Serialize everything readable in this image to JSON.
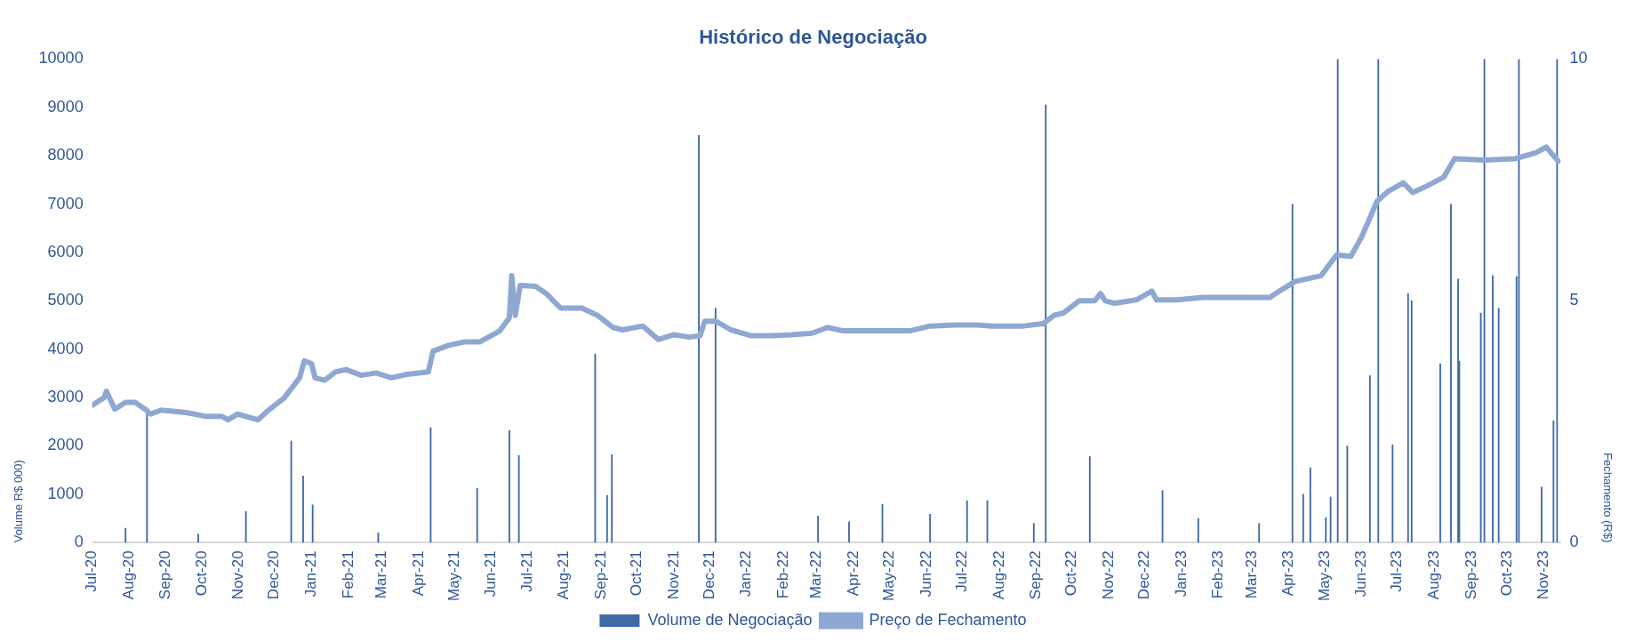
{
  "chart_data": {
    "type": "bar",
    "title": "Histórico de Negociação",
    "ylabel": "Volume R$ 000)",
    "y2label": "Fechamento (R$)",
    "xlim": [
      "2020-07-01",
      "2023-11-15"
    ],
    "xticks": [
      {
        "value": "2020-07-01",
        "label": "Jul-20"
      },
      {
        "value": "2020-08-01",
        "label": "Aug-20"
      },
      {
        "value": "2020-09-01",
        "label": "Sep-20"
      },
      {
        "value": "2020-10-01",
        "label": "Oct-20"
      },
      {
        "value": "2020-11-01",
        "label": "Nov-20"
      },
      {
        "value": "2020-12-01",
        "label": "Dec-20"
      },
      {
        "value": "2021-01-01",
        "label": "Jan-21"
      },
      {
        "value": "2021-02-01",
        "label": "Feb-21"
      },
      {
        "value": "2021-03-01",
        "label": "Mar-21"
      },
      {
        "value": "2021-04-01",
        "label": "Apr-21"
      },
      {
        "value": "2021-05-01",
        "label": "May-21"
      },
      {
        "value": "2021-06-01",
        "label": "Jun-21"
      },
      {
        "value": "2021-07-01",
        "label": "Jul-21"
      },
      {
        "value": "2021-08-01",
        "label": "Aug-21"
      },
      {
        "value": "2021-09-01",
        "label": "Sep-21"
      },
      {
        "value": "2021-10-01",
        "label": "Oct-21"
      },
      {
        "value": "2021-11-01",
        "label": "Nov-21"
      },
      {
        "value": "2021-12-01",
        "label": "Dec-21"
      },
      {
        "value": "2022-01-01",
        "label": "Jan-22"
      },
      {
        "value": "2022-02-01",
        "label": "Feb-22"
      },
      {
        "value": "2022-03-01",
        "label": "Mar-22"
      },
      {
        "value": "2022-04-01",
        "label": "Apr-22"
      },
      {
        "value": "2022-05-01",
        "label": "May-22"
      },
      {
        "value": "2022-06-01",
        "label": "Jun-22"
      },
      {
        "value": "2022-07-01",
        "label": "Jul-22"
      },
      {
        "value": "2022-08-01",
        "label": "Aug-22"
      },
      {
        "value": "2022-09-01",
        "label": "Sep-22"
      },
      {
        "value": "2022-10-01",
        "label": "Oct-22"
      },
      {
        "value": "2022-11-01",
        "label": "Nov-22"
      },
      {
        "value": "2022-12-01",
        "label": "Dec-22"
      },
      {
        "value": "2023-01-01",
        "label": "Jan-23"
      },
      {
        "value": "2023-02-01",
        "label": "Feb-23"
      },
      {
        "value": "2023-03-01",
        "label": "Mar-23"
      },
      {
        "value": "2023-04-01",
        "label": "Apr-23"
      },
      {
        "value": "2023-05-01",
        "label": "May-23"
      },
      {
        "value": "2023-06-01",
        "label": "Jun-23"
      },
      {
        "value": "2023-07-01",
        "label": "Jul-23"
      },
      {
        "value": "2023-08-01",
        "label": "Aug-23"
      },
      {
        "value": "2023-09-01",
        "label": "Sep-23"
      },
      {
        "value": "2023-10-01",
        "label": "Oct-23"
      },
      {
        "value": "2023-11-01",
        "label": "Nov-23"
      }
    ],
    "ylim": [
      0,
      10000
    ],
    "yticks": [
      0,
      1000,
      2000,
      3000,
      4000,
      5000,
      6000,
      7000,
      8000,
      9000,
      10000
    ],
    "y2lim": [
      0,
      10
    ],
    "y2ticks": [
      0,
      5,
      10
    ],
    "grid": false,
    "legend": "bottom",
    "series": [
      {
        "name": "Volume de Negociação",
        "color": "#3f6aa6",
        "x": [
          "2020-07-29",
          "2020-08-16",
          "2020-09-28",
          "2020-11-07",
          "2020-12-15",
          "2020-12-25",
          "2021-01-02",
          "2021-02-26",
          "2021-04-11",
          "2021-05-20",
          "2021-06-16",
          "2021-06-24",
          "2021-08-27",
          "2021-09-06",
          "2021-09-10",
          "2021-11-22",
          "2021-12-06",
          "2022-03-02",
          "2022-03-28",
          "2022-04-25",
          "2022-06-04",
          "2022-07-05",
          "2022-07-22",
          "2022-08-30",
          "2022-09-09",
          "2022-10-16",
          "2022-12-16",
          "2023-01-15",
          "2023-03-07",
          "2023-04-04",
          "2023-04-13",
          "2023-04-19",
          "2023-05-02",
          "2023-05-06",
          "2023-05-12",
          "2023-05-20",
          "2023-06-08",
          "2023-06-15",
          "2023-06-27",
          "2023-07-10",
          "2023-07-13",
          "2023-08-06",
          "2023-08-15",
          "2023-08-21",
          "2023-08-22",
          "2023-09-09",
          "2023-09-12",
          "2023-09-19",
          "2023-09-24",
          "2023-10-09",
          "2023-10-11",
          "2023-10-30",
          "2023-11-09",
          "2023-11-12"
        ],
        "values": [
          300,
          2700,
          180,
          650,
          2100,
          1380,
          780,
          200,
          2380,
          1120,
          2320,
          1800,
          3900,
          980,
          1820,
          8420,
          4850,
          550,
          430,
          790,
          590,
          870,
          870,
          400,
          9050,
          1780,
          1080,
          500,
          400,
          7000,
          1000,
          1550,
          520,
          940,
          10000,
          2000,
          3450,
          10000,
          2020,
          5150,
          5000,
          3700,
          7000,
          5450,
          3750,
          4750,
          10000,
          5520,
          4850,
          5500,
          10000,
          1150,
          2520,
          10000
        ]
      },
      {
        "name": "Preço de Fechamento",
        "type": "line",
        "axis": "y2",
        "color": "#8fa8d2",
        "x": [
          "2020-07-01",
          "2020-07-11",
          "2020-07-13",
          "2020-07-20",
          "2020-07-29",
          "2020-08-06",
          "2020-08-15",
          "2020-08-19",
          "2020-08-28",
          "2020-09-18",
          "2020-10-05",
          "2020-10-18",
          "2020-10-23",
          "2020-10-31",
          "2020-11-17",
          "2020-11-26",
          "2020-12-09",
          "2020-12-22",
          "2020-12-26",
          "2021-01-01",
          "2021-01-04",
          "2021-01-12",
          "2021-01-21",
          "2021-01-30",
          "2021-02-12",
          "2021-02-24",
          "2021-03-09",
          "2021-03-22",
          "2021-04-09",
          "2021-04-13",
          "2021-04-26",
          "2021-05-09",
          "2021-05-22",
          "2021-06-08",
          "2021-06-16",
          "2021-06-18",
          "2021-06-21",
          "2021-06-25",
          "2021-07-08",
          "2021-07-17",
          "2021-07-29",
          "2021-08-16",
          "2021-08-29",
          "2021-09-11",
          "2021-09-19",
          "2021-10-06",
          "2021-10-19",
          "2021-11-01",
          "2021-11-14",
          "2021-11-23",
          "2021-11-27",
          "2021-12-06",
          "2021-12-19",
          "2022-01-05",
          "2022-01-22",
          "2022-02-08",
          "2022-02-25",
          "2022-03-10",
          "2022-03-23",
          "2022-04-22",
          "2022-05-18",
          "2022-06-04",
          "2022-06-26",
          "2022-07-13",
          "2022-07-26",
          "2022-08-21",
          "2022-09-07",
          "2022-09-16",
          "2022-09-24",
          "2022-10-07",
          "2022-10-20",
          "2022-10-25",
          "2022-10-29",
          "2022-11-06",
          "2022-11-24",
          "2022-12-07",
          "2022-12-11",
          "2022-12-28",
          "2023-01-19",
          "2023-02-18",
          "2023-03-16",
          "2023-03-24",
          "2023-04-06",
          "2023-04-28",
          "2023-05-11",
          "2023-05-23",
          "2023-06-01",
          "2023-06-14",
          "2023-06-23",
          "2023-07-06",
          "2023-07-14",
          "2023-07-27",
          "2023-08-09",
          "2023-08-18",
          "2023-09-12",
          "2023-10-08",
          "2023-10-25",
          "2023-11-03",
          "2023-11-07",
          "2023-11-13"
        ],
        "values": [
          2.84,
          3.0,
          3.13,
          2.76,
          2.9,
          2.9,
          2.75,
          2.66,
          2.74,
          2.69,
          2.61,
          2.61,
          2.54,
          2.66,
          2.54,
          2.74,
          2.99,
          3.41,
          3.76,
          3.7,
          3.41,
          3.36,
          3.53,
          3.58,
          3.46,
          3.51,
          3.41,
          3.48,
          3.53,
          3.96,
          4.08,
          4.15,
          4.15,
          4.38,
          4.65,
          5.52,
          4.7,
          5.32,
          5.3,
          5.15,
          4.85,
          4.85,
          4.7,
          4.45,
          4.4,
          4.48,
          4.2,
          4.3,
          4.25,
          4.28,
          4.58,
          4.58,
          4.4,
          4.28,
          4.28,
          4.3,
          4.33,
          4.45,
          4.38,
          4.38,
          4.38,
          4.48,
          4.5,
          4.5,
          4.48,
          4.48,
          4.53,
          4.7,
          4.75,
          5.0,
          5.0,
          5.15,
          5.0,
          4.95,
          5.02,
          5.2,
          5.02,
          5.02,
          5.07,
          5.07,
          5.07,
          5.2,
          5.4,
          5.52,
          5.95,
          5.92,
          6.32,
          7.06,
          7.26,
          7.44,
          7.24,
          7.39,
          7.56,
          7.94,
          7.91,
          7.94,
          8.06,
          8.18,
          8.06,
          7.89
        ]
      }
    ]
  }
}
